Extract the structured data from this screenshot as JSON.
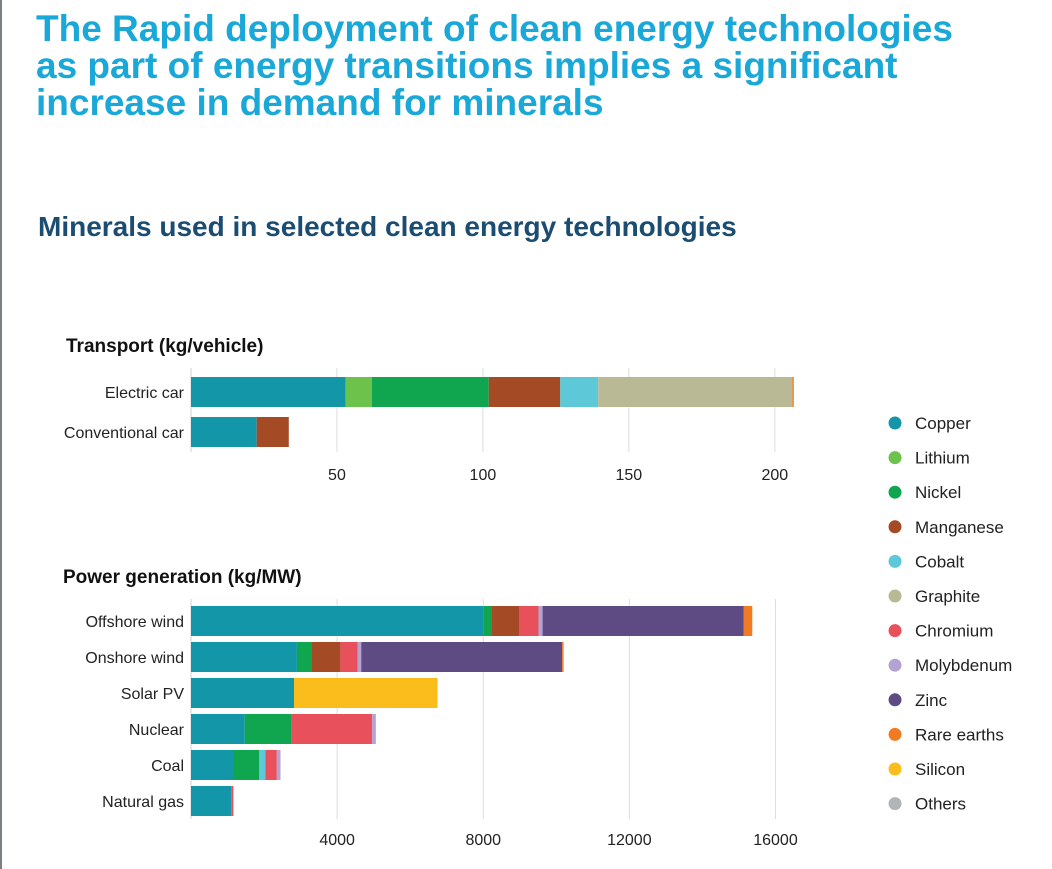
{
  "title_lines": [
    "The Rapid deployment of clean energy technologies",
    "as part of energy transitions implies a significant",
    "increase in demand for minerals"
  ],
  "subtitle": "Minerals used in selected clean energy technologies",
  "colors": {
    "Copper": "#1496a9",
    "Lithium": "#6cc24a",
    "Nickel": "#10a54f",
    "Manganese": "#a44a25",
    "Cobalt": "#5cc8d8",
    "Graphite": "#b9b996",
    "Chromium": "#e8505b",
    "Molybdenum": "#b3a3d3",
    "Zinc": "#5e4b84",
    "Rare earths": "#f07b22",
    "Silicon": "#fbbd1c",
    "Others": "#b2b5b7"
  },
  "legend": [
    "Copper",
    "Lithium",
    "Nickel",
    "Manganese",
    "Cobalt",
    "Graphite",
    "Chromium",
    "Molybdenum",
    "Zinc",
    "Rare earths",
    "Silicon",
    "Others"
  ],
  "chart_data": [
    {
      "type": "bar",
      "orientation": "horizontal",
      "stacked": true,
      "title": "Transport (kg/vehicle)",
      "categories": [
        "Electric car",
        "Conventional car"
      ],
      "xlim": [
        0,
        210
      ],
      "xticks": [
        50,
        100,
        150,
        200
      ],
      "grid": true,
      "series": [
        {
          "name": "Copper",
          "values": [
            53,
            22.5
          ]
        },
        {
          "name": "Lithium",
          "values": [
            9,
            0
          ]
        },
        {
          "name": "Nickel",
          "values": [
            40,
            0
          ]
        },
        {
          "name": "Manganese",
          "values": [
            24.5,
            11
          ]
        },
        {
          "name": "Cobalt",
          "values": [
            13,
            0
          ]
        },
        {
          "name": "Graphite",
          "values": [
            66.5,
            0
          ]
        },
        {
          "name": "Rare earths",
          "values": [
            0.5,
            0
          ]
        }
      ]
    },
    {
      "type": "bar",
      "orientation": "horizontal",
      "stacked": true,
      "title": "Power generation (kg/MW)",
      "categories": [
        "Offshore wind",
        "Onshore wind",
        "Solar PV",
        "Nuclear",
        "Coal",
        "Natural gas"
      ],
      "xlim": [
        0,
        17000
      ],
      "xticks": [
        4000,
        8000,
        12000,
        16000
      ],
      "xtick_labels": [
        "4000",
        "8000",
        "12000",
        "16000"
      ],
      "grid": true,
      "series": [
        {
          "name": "Copper",
          "values": [
            8000,
            2900,
            2820,
            1470,
            1150,
            1100
          ]
        },
        {
          "name": "Nickel",
          "values": [
            240,
            400,
            0,
            1290,
            720,
            0
          ]
        },
        {
          "name": "Manganese",
          "values": [
            750,
            790,
            0,
            0,
            0,
            0
          ]
        },
        {
          "name": "Cobalt",
          "values": [
            0,
            0,
            0,
            0,
            170,
            0
          ]
        },
        {
          "name": "Chromium",
          "values": [
            525,
            470,
            0,
            2200,
            310,
            60
          ]
        },
        {
          "name": "Molybdenum",
          "values": [
            110,
            100,
            0,
            100,
            100,
            0
          ]
        },
        {
          "name": "Zinc",
          "values": [
            5500,
            5500,
            0,
            0,
            0,
            0
          ]
        },
        {
          "name": "Rare earths",
          "values": [
            240,
            40,
            0,
            0,
            0,
            0
          ]
        },
        {
          "name": "Silicon",
          "values": [
            0,
            0,
            3930,
            0,
            0,
            0
          ]
        },
        {
          "name": "Others",
          "values": [
            0,
            0,
            0,
            0,
            0,
            0
          ]
        }
      ]
    }
  ]
}
